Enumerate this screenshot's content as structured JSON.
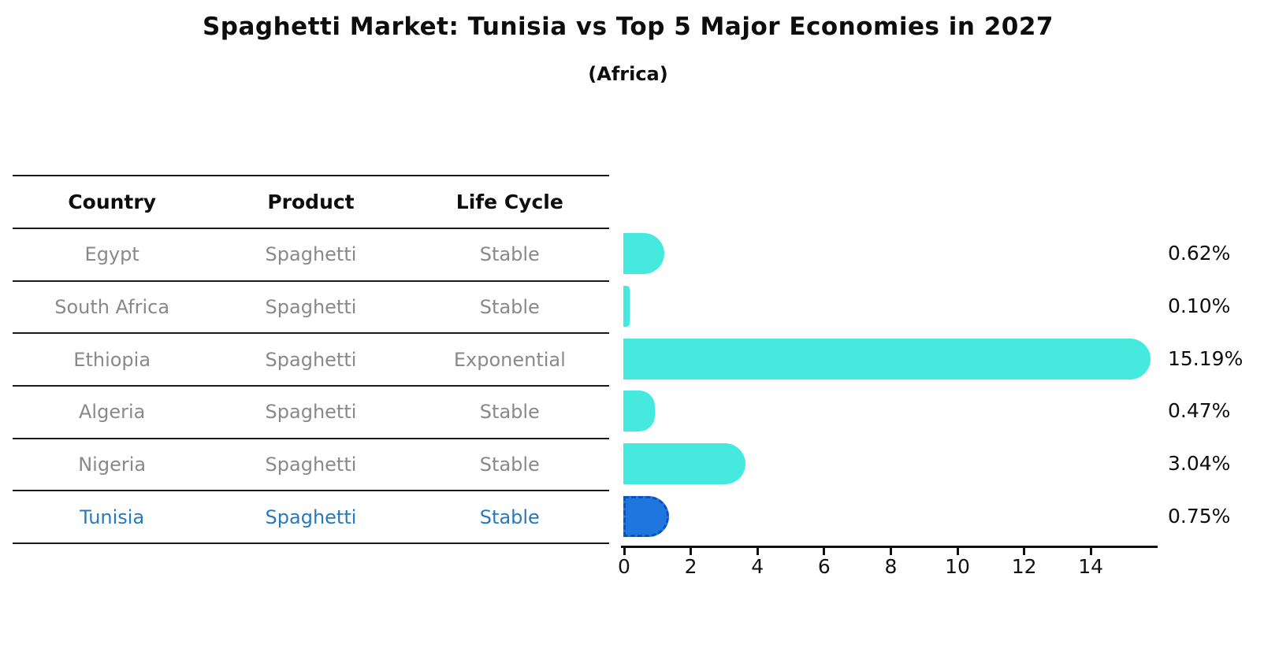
{
  "title": "Spaghetti Market: Tunisia vs Top 5 Major Economies in 2027",
  "subtitle": "(Africa)",
  "table": {
    "headers": [
      "Country",
      "Product",
      "Life Cycle"
    ],
    "rows": [
      {
        "country": "Egypt",
        "product": "Spaghetti",
        "life_cycle": "Stable",
        "highlight": false
      },
      {
        "country": "South Africa",
        "product": "Spaghetti",
        "life_cycle": "Stable",
        "highlight": false
      },
      {
        "country": "Ethiopia",
        "product": "Spaghetti",
        "life_cycle": "Exponential",
        "highlight": false
      },
      {
        "country": "Algeria",
        "product": "Spaghetti",
        "life_cycle": "Stable",
        "highlight": false
      },
      {
        "country": "Nigeria",
        "product": "Spaghetti",
        "life_cycle": "Stable",
        "highlight": false
      },
      {
        "country": "Tunisia",
        "product": "Spaghetti",
        "life_cycle": "Stable",
        "highlight": true
      }
    ]
  },
  "chart_data": {
    "type": "bar",
    "orientation": "horizontal",
    "title": "Spaghetti Market: Tunisia vs Top 5 Major Economies in 2027",
    "subtitle": "(Africa)",
    "categories": [
      "Egypt",
      "South Africa",
      "Ethiopia",
      "Algeria",
      "Nigeria",
      "Tunisia"
    ],
    "values": [
      0.62,
      0.1,
      15.19,
      0.47,
      3.04,
      0.75
    ],
    "value_labels": [
      "0.62%",
      "0.10%",
      "15.19%",
      "0.47%",
      "3.04%",
      "0.75%"
    ],
    "xlabel": "",
    "ylabel": "",
    "xlim": [
      0,
      16
    ],
    "x_ticks": [
      0,
      2,
      4,
      6,
      8,
      10,
      12,
      14
    ],
    "grid": false,
    "legend": false,
    "highlight_index": 5,
    "colors": {
      "bar": "#46e9dd",
      "highlight_bar": "#1f76dc",
      "highlight_bar_border": "#0d51c4",
      "highlight_text": "#2878be",
      "table_text": "#898989",
      "header_text": "#0d0d0d",
      "axis": "#111111"
    }
  }
}
